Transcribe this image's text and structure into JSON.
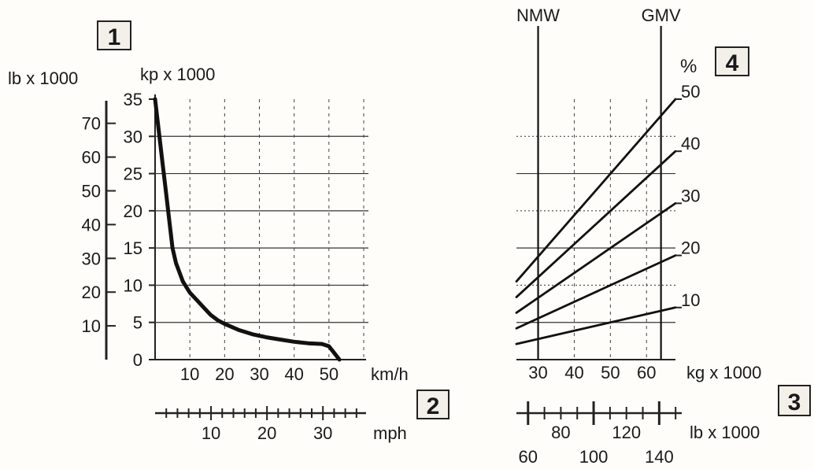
{
  "chart_data": [
    {
      "type": "line",
      "panel_badge": "1",
      "x_badge": "2",
      "ylabel_left": "lb x 1000",
      "ylabel": "kp x 1000",
      "xlabel": "km/h",
      "xlabel_secondary": "mph",
      "xlim": [
        0,
        60
      ],
      "ylim": [
        0,
        35
      ],
      "x_ticks": [
        "10",
        "20",
        "30",
        "40",
        "50"
      ],
      "y_ticks": [
        "0",
        "5",
        "10",
        "15",
        "20",
        "25",
        "30",
        "35"
      ],
      "lb_ticks": [
        "10",
        "20",
        "30",
        "40",
        "50",
        "60",
        "70"
      ],
      "mph_ticks": [
        "10",
        "20",
        "30"
      ],
      "series": [
        {
          "x": [
            0,
            0.5,
            1,
            1.5,
            2,
            3,
            4,
            5,
            6,
            8,
            10,
            12,
            14,
            16,
            18,
            20,
            24,
            28,
            32,
            36,
            40,
            44,
            48,
            50,
            51,
            52,
            53
          ],
          "y": [
            35,
            33,
            31,
            29,
            27,
            23,
            19,
            15,
            13,
            10.5,
            9,
            8,
            7,
            6,
            5.3,
            4.8,
            4,
            3.4,
            3,
            2.7,
            2.4,
            2.2,
            2.1,
            1.8,
            1.2,
            0.6,
            0
          ]
        }
      ]
    },
    {
      "type": "line",
      "panel_badge": "4",
      "x_badge": "3",
      "ylabel": "%",
      "xlabel": "kg x 1000",
      "xlabel_secondary": "lb x 1000",
      "xlim": [
        24,
        68
      ],
      "ylim": [
        0,
        50
      ],
      "x_ticks": [
        "30",
        "40",
        "50",
        "60"
      ],
      "y_ticks": [
        "10",
        "20",
        "30",
        "40",
        "50"
      ],
      "lb_ticks_upper": [
        "80",
        "120"
      ],
      "lb_ticks_lower": [
        "60",
        "100",
        "140"
      ],
      "markers": [
        {
          "label": "NMW",
          "x": 30
        },
        {
          "label": "GMV",
          "x": 64
        }
      ],
      "series": [
        {
          "name": "10",
          "x": [
            24,
            68
          ],
          "y": [
            3,
            10
          ]
        },
        {
          "name": "20",
          "x": [
            24,
            68
          ],
          "y": [
            6,
            20
          ]
        },
        {
          "name": "30",
          "x": [
            24,
            68
          ],
          "y": [
            9,
            30
          ]
        },
        {
          "name": "40",
          "x": [
            24,
            68
          ],
          "y": [
            12,
            40
          ]
        },
        {
          "name": "50",
          "x": [
            24,
            68
          ],
          "y": [
            15,
            50
          ]
        }
      ]
    }
  ]
}
